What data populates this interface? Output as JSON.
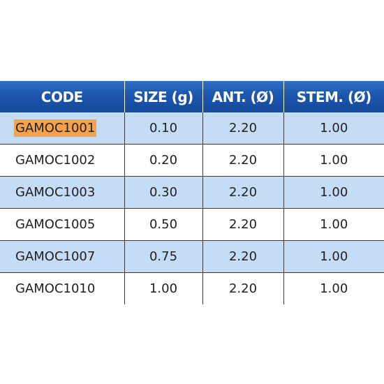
{
  "table": {
    "headers": [
      "CODE",
      "SIZE (g)",
      "ANT. (Ø)",
      "STEM. (Ø)"
    ],
    "rows": [
      {
        "code": "GAMOC1001",
        "size": "0.10",
        "ant": "2.20",
        "stem": "1.00"
      },
      {
        "code": "GAMOC1002",
        "size": "0.20",
        "ant": "2.20",
        "stem": "1.00"
      },
      {
        "code": "GAMOC1003",
        "size": "0.30",
        "ant": "2.20",
        "stem": "1.00"
      },
      {
        "code": "GAMOC1005",
        "size": "0.50",
        "ant": "2.20",
        "stem": "1.00"
      },
      {
        "code": "GAMOC1007",
        "size": "0.75",
        "ant": "2.20",
        "stem": "1.00"
      },
      {
        "code": "GAMOC1010",
        "size": "1.00",
        "ant": "2.20",
        "stem": "1.00"
      }
    ]
  },
  "colors": {
    "header_bg": "#1c56ad",
    "shaded_row": "#c4dcf6",
    "highlight": "#f6a24a"
  }
}
